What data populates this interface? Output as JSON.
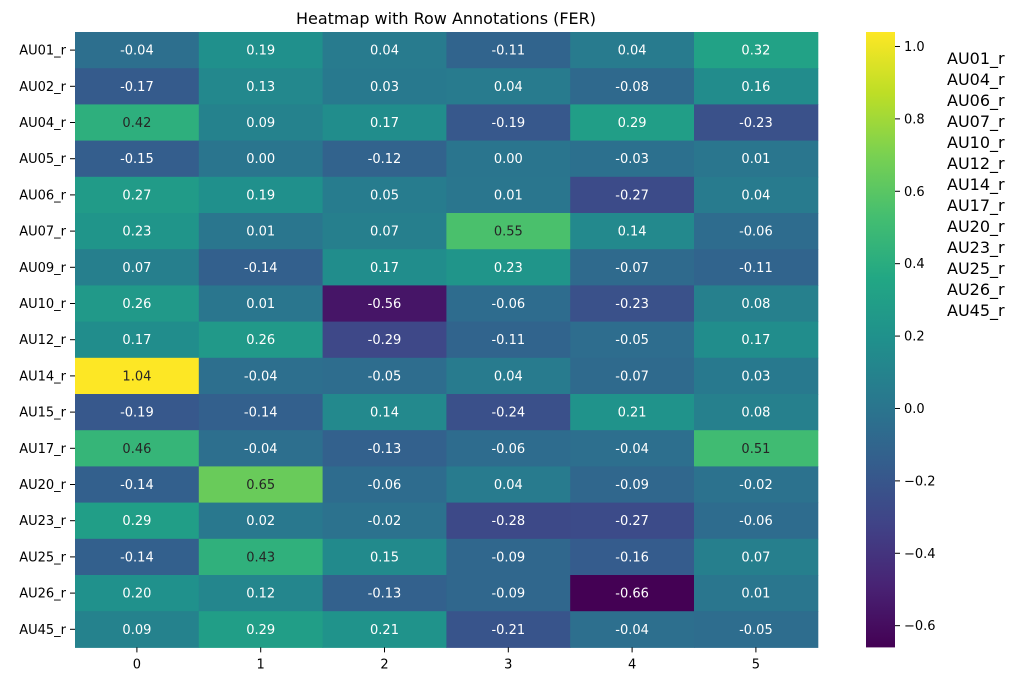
{
  "chart_data": {
    "type": "heatmap",
    "title": "Heatmap with Row Annotations (FER)",
    "xlabel": "",
    "ylabel": "",
    "columns": [
      "0",
      "1",
      "2",
      "3",
      "4",
      "5"
    ],
    "rows": [
      "AU01_r",
      "AU02_r",
      "AU04_r",
      "AU05_r",
      "AU06_r",
      "AU07_r",
      "AU09_r",
      "AU10_r",
      "AU12_r",
      "AU14_r",
      "AU15_r",
      "AU17_r",
      "AU20_r",
      "AU23_r",
      "AU25_r",
      "AU26_r",
      "AU45_r"
    ],
    "values": [
      [
        -0.04,
        0.19,
        0.04,
        -0.11,
        0.04,
        0.32
      ],
      [
        -0.17,
        0.13,
        0.03,
        0.04,
        -0.08,
        0.16
      ],
      [
        0.42,
        0.09,
        0.17,
        -0.19,
        0.29,
        -0.23
      ],
      [
        -0.15,
        0.0,
        -0.12,
        0.0,
        -0.03,
        0.01
      ],
      [
        0.27,
        0.19,
        0.05,
        0.01,
        -0.27,
        0.04
      ],
      [
        0.23,
        0.01,
        0.07,
        0.55,
        0.14,
        -0.06
      ],
      [
        0.07,
        -0.14,
        0.17,
        0.23,
        -0.07,
        -0.11
      ],
      [
        0.26,
        0.01,
        -0.56,
        -0.06,
        -0.23,
        0.08
      ],
      [
        0.17,
        0.26,
        -0.29,
        -0.11,
        -0.05,
        0.17
      ],
      [
        1.04,
        -0.04,
        -0.05,
        0.04,
        -0.07,
        0.03
      ],
      [
        -0.19,
        -0.14,
        0.14,
        -0.24,
        0.21,
        0.08
      ],
      [
        0.46,
        -0.04,
        -0.13,
        -0.06,
        -0.04,
        0.51
      ],
      [
        -0.14,
        0.65,
        -0.06,
        0.04,
        -0.09,
        -0.02
      ],
      [
        0.29,
        0.02,
        -0.02,
        -0.28,
        -0.27,
        -0.06
      ],
      [
        -0.14,
        0.43,
        0.15,
        -0.09,
        -0.16,
        0.07
      ],
      [
        0.2,
        0.12,
        -0.13,
        -0.09,
        -0.66,
        0.01
      ],
      [
        0.09,
        0.29,
        0.21,
        -0.21,
        -0.04,
        -0.05
      ]
    ],
    "colormap": "viridis",
    "vmin": -0.66,
    "vmax": 1.04,
    "colorbar_ticks": [
      -0.6,
      -0.4,
      -0.2,
      0.0,
      0.2,
      0.4,
      0.6,
      0.8,
      1.0
    ],
    "colorbar_tick_labels": [
      "−0.6",
      "−0.4",
      "−0.2",
      "0.0",
      "0.2",
      "0.4",
      "0.6",
      "0.8",
      "1.0"
    ],
    "annotation_list": [
      "AU01_r",
      "AU04_r",
      "AU06_r",
      "AU07_r",
      "AU10_r",
      "AU12_r",
      "AU14_r",
      "AU17_r",
      "AU20_r",
      "AU23_r",
      "AU25_r",
      "AU26_r",
      "AU45_r"
    ],
    "annotation_placement": "right"
  }
}
